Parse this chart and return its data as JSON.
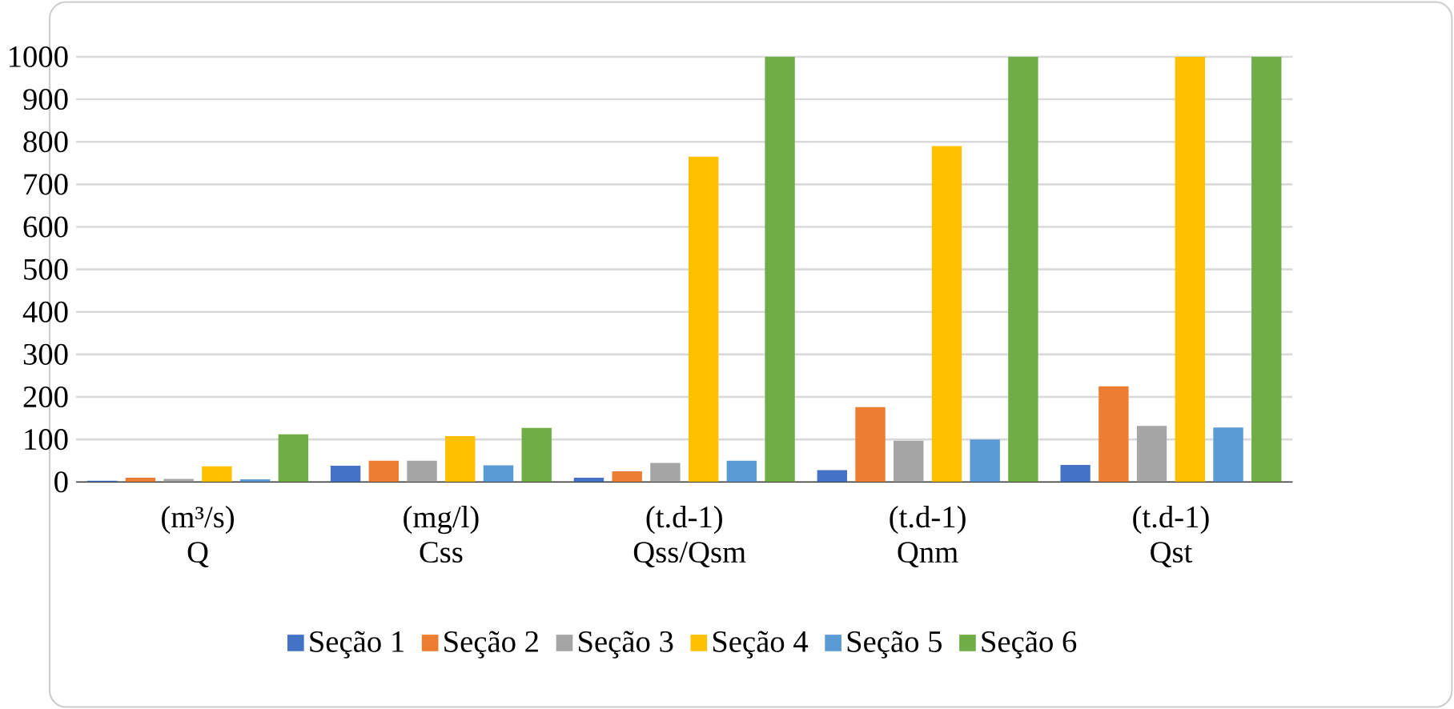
{
  "chart_data": {
    "type": "bar",
    "categories": [
      "(m³/s) Q",
      "(mg/l) Css",
      "(t.d-1) Qss/Qsm",
      "(t.d-1) Qnm",
      "(t.d-1) Qst"
    ],
    "series": [
      {
        "name": "Seção 1",
        "color": "#4472c4",
        "values": [
          3,
          38,
          10,
          28,
          40
        ]
      },
      {
        "name": "Seção 2",
        "color": "#ed7d31",
        "values": [
          10,
          50,
          25,
          176,
          225
        ]
      },
      {
        "name": "Seção 3",
        "color": "#a5a5a5",
        "values": [
          7,
          50,
          45,
          97,
          132
        ]
      },
      {
        "name": "Seção 4",
        "color": "#ffc000",
        "values": [
          37,
          108,
          765,
          790,
          1000
        ]
      },
      {
        "name": "Seção 5",
        "color": "#5b9bd5",
        "values": [
          6,
          39,
          50,
          100,
          128
        ]
      },
      {
        "name": "Seção 6",
        "color": "#70ad47",
        "values": [
          112,
          127,
          1000,
          1000,
          1000
        ]
      }
    ],
    "ylim": [
      0,
      1000
    ],
    "yticks": [
      0,
      100,
      200,
      300,
      400,
      500,
      600,
      700,
      800,
      900,
      1000
    ],
    "grid": "y",
    "legend": "bottom"
  }
}
